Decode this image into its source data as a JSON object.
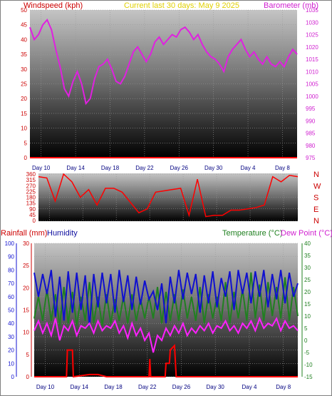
{
  "header": {
    "left_title": "Windspeed (kph)",
    "center_title": "Current last 30 days: May 9 2025",
    "right_title": "Barometer (mb)"
  },
  "dates": [
    "Day 10",
    "Day 14",
    "Day 18",
    "Day 22",
    "Day 26",
    "Day 30",
    "Day 4",
    "Day 8"
  ],
  "direction_letters": [
    "N",
    "W",
    "S",
    "E",
    "N"
  ],
  "lower_titles": {
    "rainfall": "Rainfall (mm)",
    "humidity": "Humidity",
    "temperature": "Temperature (°C)",
    "dewpoint": "Dew Point (°C)"
  },
  "colors": {
    "barometer": "#e020e0",
    "windspeed": "#ff0000",
    "direction": "#ff0000",
    "rainfall": "#ff0000",
    "humidity": "#1010d0",
    "temperature": "#208020",
    "dewpoint": "#ff20ff",
    "center_title": "#e0d000"
  },
  "chart_data": [
    {
      "type": "line",
      "title": "Current last 30 days: May 9 2025",
      "xlabel": "",
      "ylabel_left": "Windspeed (kph)",
      "ylabel_right": "Barometer (mb)",
      "x_ticks": [
        "Day 10",
        "Day 14",
        "Day 18",
        "Day 22",
        "Day 26",
        "Day 30",
        "Day 4",
        "Day 8"
      ],
      "ylim_left": [
        0,
        50
      ],
      "yticks_left": [
        0,
        5,
        10,
        15,
        20,
        25,
        30,
        35,
        40,
        45,
        50
      ],
      "ylim_right": [
        975,
        1035
      ],
      "yticks_right": [
        975,
        980,
        985,
        990,
        995,
        1000,
        1005,
        1010,
        1015,
        1020,
        1025,
        1030,
        1035
      ],
      "grid": true,
      "series": [
        {
          "name": "Barometer (mb)",
          "axis": "right",
          "x": [
            0,
            0.5,
            1,
            1.5,
            2,
            2.5,
            3,
            3.5,
            4,
            4.5,
            5,
            5.5,
            6,
            6.5,
            7,
            7.5,
            8,
            8.5,
            9,
            9.5,
            10,
            10.5,
            11,
            11.5,
            12,
            12.5,
            13,
            13.5,
            14,
            14.5,
            15,
            15.5,
            16,
            16.5,
            17,
            17.5,
            18,
            18.5,
            19,
            19.5,
            20,
            20.5,
            21,
            21.5,
            22,
            22.5,
            23,
            23.5,
            24,
            24.5,
            25,
            25.5,
            26,
            26.5,
            27,
            27.5,
            28,
            28.5,
            29,
            29.5,
            30,
            30.5,
            31
          ],
          "values": [
            1028,
            1023,
            1025,
            1029,
            1031,
            1027,
            1019,
            1012,
            1003,
            1000,
            1006,
            1010,
            1005,
            997,
            999,
            1007,
            1012,
            1013,
            1015,
            1011,
            1006,
            1005,
            1008,
            1013,
            1018,
            1020,
            1017,
            1014,
            1017,
            1022,
            1024,
            1021,
            1023,
            1025,
            1024,
            1027,
            1028,
            1026,
            1023,
            1025,
            1021,
            1018,
            1016,
            1015,
            1013,
            1010,
            1016,
            1019,
            1021,
            1023,
            1019,
            1016,
            1018,
            1015,
            1013,
            1016,
            1013,
            1012,
            1014,
            1012,
            1016,
            1019,
            1017
          ]
        },
        {
          "name": "Windspeed (kph)",
          "axis": "left",
          "x": [
            0,
            31
          ],
          "values": [
            0,
            0
          ]
        }
      ]
    },
    {
      "type": "line",
      "title": "",
      "ylim": [
        0,
        360
      ],
      "yticks": [
        0,
        90,
        180,
        270,
        360
      ],
      "yticks_secondary": [
        45,
        135,
        225,
        315
      ],
      "right_labels": [
        "N",
        "W",
        "S",
        "E",
        "N"
      ],
      "x_ticks": [
        "Day 10",
        "Day 14",
        "Day 18",
        "Day 22",
        "Day 26",
        "Day 30",
        "Day 4",
        "Day 8"
      ],
      "grid": true,
      "series": [
        {
          "name": "",
          "x": [
            0,
            1,
            2,
            3,
            4,
            5,
            6,
            7,
            8,
            9,
            10,
            11,
            12,
            13,
            14,
            15,
            16,
            17,
            18,
            19,
            20,
            21,
            22,
            23,
            24,
            25,
            26,
            27,
            28,
            29,
            30,
            31
          ],
          "values": [
            340,
            330,
            150,
            360,
            300,
            180,
            240,
            120,
            250,
            250,
            220,
            140,
            60,
            90,
            220,
            230,
            240,
            250,
            40,
            320,
            30,
            40,
            40,
            80,
            80,
            90,
            100,
            120,
            340,
            300,
            350,
            340
          ]
        }
      ]
    },
    {
      "type": "line",
      "title": "",
      "ylabel_far_left": "Rainfall (mm)",
      "ylabel_left": "Humidity",
      "ylabel_right": "Temperature (°C)",
      "ylabel_far_right": "Dew Point (°C)",
      "ylim_humidity": [
        0,
        100
      ],
      "yticks_humidity": [
        0,
        10,
        20,
        30,
        40,
        50,
        60,
        70,
        80,
        90,
        100
      ],
      "ylim_rainfall": [
        0,
        30
      ],
      "yticks_rainfall": [
        0,
        5,
        10,
        15,
        20,
        25,
        30
      ],
      "ylim_temperature": [
        -15,
        40
      ],
      "yticks_temperature": [
        -15,
        -10,
        -5,
        0,
        5,
        10,
        15,
        20,
        25,
        30,
        35,
        40
      ],
      "x_ticks": [
        "Day 10",
        "Day 14",
        "Day 18",
        "Day 22",
        "Day 26",
        "Day 30",
        "Day 4",
        "Day 8"
      ],
      "grid": true,
      "series": [
        {
          "name": "Humidity",
          "axis": "humidity",
          "x": [
            0,
            0.5,
            1,
            1.5,
            2,
            2.5,
            3,
            3.5,
            4,
            4.5,
            5,
            5.5,
            6,
            6.5,
            7,
            7.5,
            8,
            8.5,
            9,
            9.5,
            10,
            10.5,
            11,
            11.5,
            12,
            12.5,
            13,
            13.5,
            14,
            14.5,
            15,
            15.5,
            16,
            16.5,
            17,
            17.5,
            18,
            18.5,
            19,
            19.5,
            20,
            20.5,
            21,
            21.5,
            22,
            22.5,
            23,
            23.5,
            24,
            24.5,
            25,
            25.5,
            26,
            26.5,
            27,
            27.5,
            28,
            28.5,
            29,
            29.5,
            30,
            30.5,
            31
          ],
          "values": [
            78,
            60,
            77,
            62,
            80,
            45,
            75,
            42,
            79,
            48,
            78,
            50,
            76,
            38,
            77,
            52,
            78,
            55,
            77,
            48,
            80,
            56,
            76,
            50,
            75,
            54,
            72,
            58,
            64,
            50,
            70,
            40,
            75,
            55,
            80,
            58,
            78,
            62,
            77,
            48,
            76,
            55,
            79,
            52,
            74,
            60,
            79,
            50,
            80,
            62,
            78,
            55,
            79,
            60,
            80,
            52,
            77,
            58,
            80,
            55,
            78,
            60,
            70
          ]
        },
        {
          "name": "Temperature (°C)",
          "axis": "temperature",
          "x": [
            0,
            0.5,
            1,
            1.5,
            2,
            2.5,
            3,
            3.5,
            4,
            4.5,
            5,
            5.5,
            6,
            6.5,
            7,
            7.5,
            8,
            8.5,
            9,
            9.5,
            10,
            10.5,
            11,
            11.5,
            12,
            12.5,
            13,
            13.5,
            14,
            14.5,
            15,
            15.5,
            16,
            16.5,
            17,
            17.5,
            18,
            18.5,
            19,
            19.5,
            20,
            20.5,
            21,
            21.5,
            22,
            22.5,
            23,
            23.5,
            24,
            24.5,
            25,
            25.5,
            26,
            26.5,
            27,
            27.5,
            28,
            28.5,
            29,
            29.5,
            30,
            30.5,
            31
          ],
          "values": [
            9,
            18,
            8,
            21,
            8,
            19,
            6,
            22,
            7,
            20,
            6,
            18,
            8,
            24,
            7,
            18,
            6,
            19,
            7,
            17,
            8,
            18,
            7,
            19,
            8,
            17,
            9,
            18,
            9,
            22,
            7,
            20,
            8,
            19,
            8,
            21,
            9,
            18,
            8,
            22,
            7,
            19,
            9,
            18,
            8,
            24,
            7,
            20,
            9,
            21,
            8,
            28,
            9,
            23,
            8,
            24,
            10,
            22,
            9,
            26,
            8,
            22,
            10
          ]
        },
        {
          "name": "Dew Point (°C)",
          "axis": "temperature",
          "x": [
            0,
            0.5,
            1,
            1.5,
            2,
            2.5,
            3,
            3.5,
            4,
            4.5,
            5,
            5.5,
            6,
            6.5,
            7,
            7.5,
            8,
            8.5,
            9,
            9.5,
            10,
            10.5,
            11,
            11.5,
            12,
            12.5,
            13,
            13.5,
            14,
            14.5,
            15,
            15.5,
            16,
            16.5,
            17,
            17.5,
            18,
            18.5,
            19,
            19.5,
            20,
            20.5,
            21,
            21.5,
            22,
            22.5,
            23,
            23.5,
            24,
            24.5,
            25,
            25.5,
            26,
            26.5,
            27,
            27.5,
            28,
            28.5,
            29,
            29.5,
            30,
            30.5,
            31
          ],
          "values": [
            4,
            8,
            3,
            7,
            2,
            9,
            0,
            6,
            4,
            8,
            2,
            6,
            5,
            7,
            3,
            8,
            4,
            6,
            5,
            8,
            3,
            6,
            1,
            7,
            2,
            5,
            0,
            3,
            -5,
            2,
            0,
            5,
            2,
            6,
            3,
            7,
            2,
            5,
            3,
            6,
            4,
            7,
            3,
            6,
            5,
            8,
            4,
            6,
            3,
            7,
            5,
            8,
            4,
            9,
            5,
            7,
            6,
            9,
            4,
            8,
            5,
            6,
            4
          ]
        },
        {
          "name": "Rainfall (mm)",
          "axis": "rainfall",
          "x": [
            0,
            3.8,
            3.9,
            4.5,
            4.6,
            6.5,
            7.5,
            8.5,
            13.5,
            13.6,
            13.7,
            15.4,
            15.5,
            15.9,
            16.0,
            16.5,
            16.7,
            31
          ],
          "values": [
            0,
            0,
            6,
            6,
            0,
            0.5,
            0.5,
            0,
            0,
            4,
            0,
            0,
            3,
            3,
            6,
            7,
            0,
            0
          ]
        }
      ]
    }
  ]
}
